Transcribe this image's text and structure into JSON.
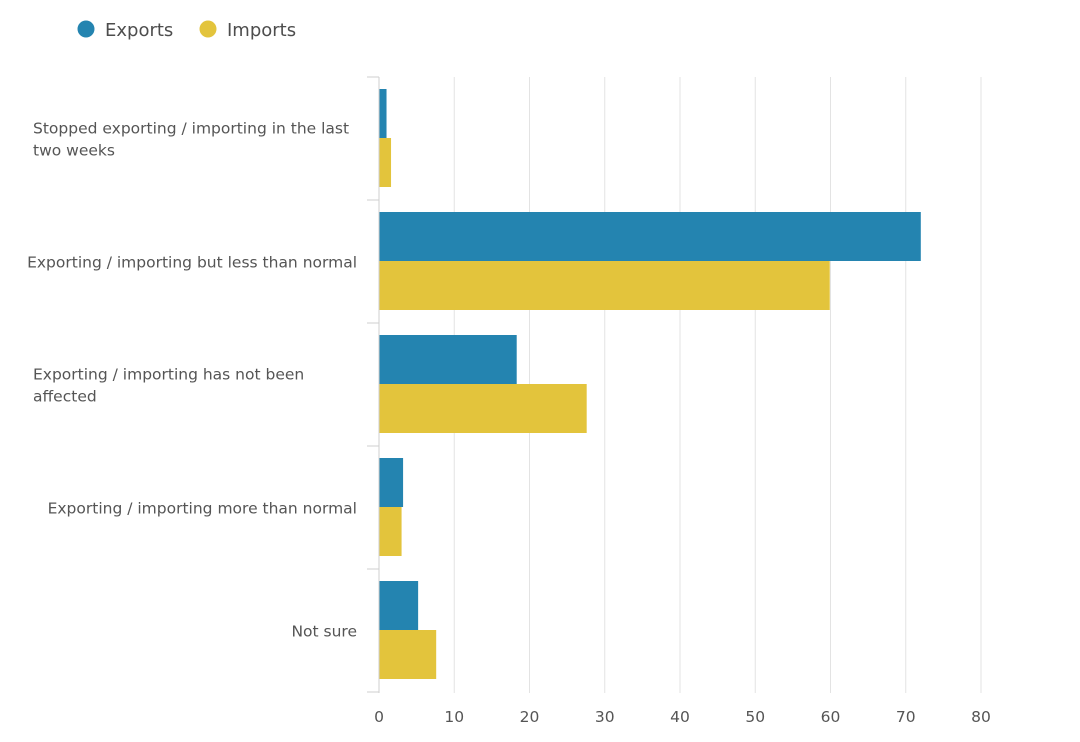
{
  "chart_data": {
    "type": "bar",
    "orientation": "horizontal",
    "categories": [
      "Stopped exporting / importing in the last two weeks",
      "Exporting / importing but less than normal",
      "Exporting / importing has not been affected",
      "Exporting / importing more than normal",
      "Not sure"
    ],
    "category_label_lines": [
      [
        "Stopped exporting / importing in the last",
        "two weeks"
      ],
      [
        "Exporting / importing but less than normal"
      ],
      [
        "Exporting / importing has not been",
        "affected"
      ],
      [
        "Exporting / importing more than normal"
      ],
      [
        "Not sure"
      ]
    ],
    "series": [
      {
        "name": "Exports",
        "color": "#2484b0",
        "values": [
          1,
          72,
          18.3,
          3.2,
          5.2
        ]
      },
      {
        "name": "Imports",
        "color": "#e3c43c",
        "values": [
          1.6,
          59.9,
          27.6,
          3.0,
          7.6
        ]
      }
    ],
    "xlim": [
      0,
      80
    ],
    "xticks": [
      0,
      10,
      20,
      30,
      40,
      50,
      60,
      70,
      80
    ],
    "grid": true,
    "legend_position": "top-left",
    "title": "",
    "xlabel": "",
    "ylabel": ""
  }
}
